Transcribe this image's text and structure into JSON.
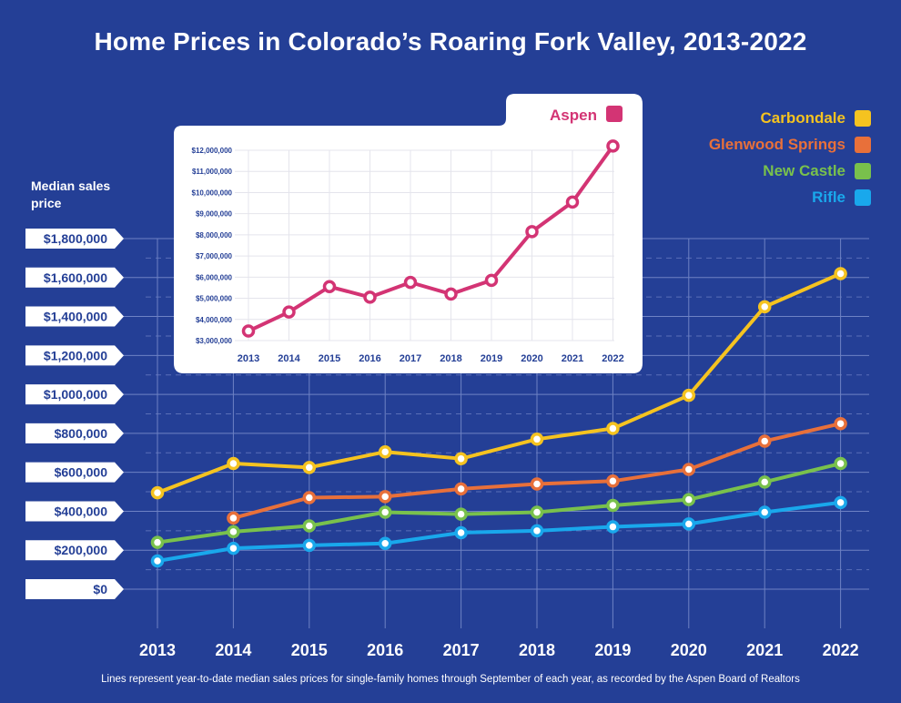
{
  "title": "Home Prices in Colorado’s Roaring Fork Valley, 2013-2022",
  "ylabel": "Median sales price",
  "footer": "Lines represent year-to-date median sales prices for single-family homes through September of each year, as recorded by the Aspen Board of Realtors",
  "colors": {
    "background": "#243f96",
    "Carbondale": "#f5c320",
    "Glenwood Springs": "#e8703a",
    "New Castle": "#79c14c",
    "Rifle": "#19a8ec",
    "Aspen": "#d33474"
  },
  "chart_data": [
    {
      "type": "line",
      "title": "Home Prices in Colorado’s Roaring Fork Valley, 2013-2022",
      "ylabel": "Median sales price",
      "xlabel": "",
      "x": [
        "2013",
        "2014",
        "2015",
        "2016",
        "2017",
        "2018",
        "2019",
        "2020",
        "2021",
        "2022"
      ],
      "ylim": [
        0,
        1800000
      ],
      "yticks": [
        "$0",
        "$200,000",
        "$400,000",
        "$600,000",
        "$800,000",
        "$1,000,000",
        "$1,200,000",
        "$1,400,000",
        "$1,600,000",
        "$1,800,000"
      ],
      "grid": true,
      "legend": "top-right",
      "series": [
        {
          "name": "Carbondale",
          "values": [
            495000,
            645000,
            625000,
            705000,
            670000,
            770000,
            825000,
            995000,
            1450000,
            1620000
          ]
        },
        {
          "name": "Glenwood Springs",
          "values": [
            null,
            365000,
            470000,
            475000,
            515000,
            540000,
            555000,
            615000,
            760000,
            850000
          ]
        },
        {
          "name": "New Castle",
          "values": [
            240000,
            295000,
            325000,
            395000,
            385000,
            395000,
            430000,
            460000,
            550000,
            645000
          ]
        },
        {
          "name": "Rifle",
          "values": [
            145000,
            210000,
            225000,
            235000,
            290000,
            300000,
            320000,
            335000,
            395000,
            445000
          ]
        }
      ]
    },
    {
      "type": "line",
      "title": "",
      "x": [
        "2013",
        "2014",
        "2015",
        "2016",
        "2017",
        "2018",
        "2019",
        "2020",
        "2021",
        "2022"
      ],
      "ylim": [
        3000000,
        12000000
      ],
      "yticks": [
        "$3,000,000",
        "$4,000,000",
        "$5,000,000",
        "$6,000,000",
        "$7,000,000",
        "$8,000,000",
        "$9,000,000",
        "$10,000,000",
        "$11,000,000",
        "$12,000,000"
      ],
      "grid": true,
      "legend": "top-right",
      "series": [
        {
          "name": "Aspen",
          "values": [
            3450000,
            4350000,
            5550000,
            5050000,
            5750000,
            5200000,
            5850000,
            8150000,
            9550000,
            12200000
          ]
        }
      ]
    }
  ]
}
